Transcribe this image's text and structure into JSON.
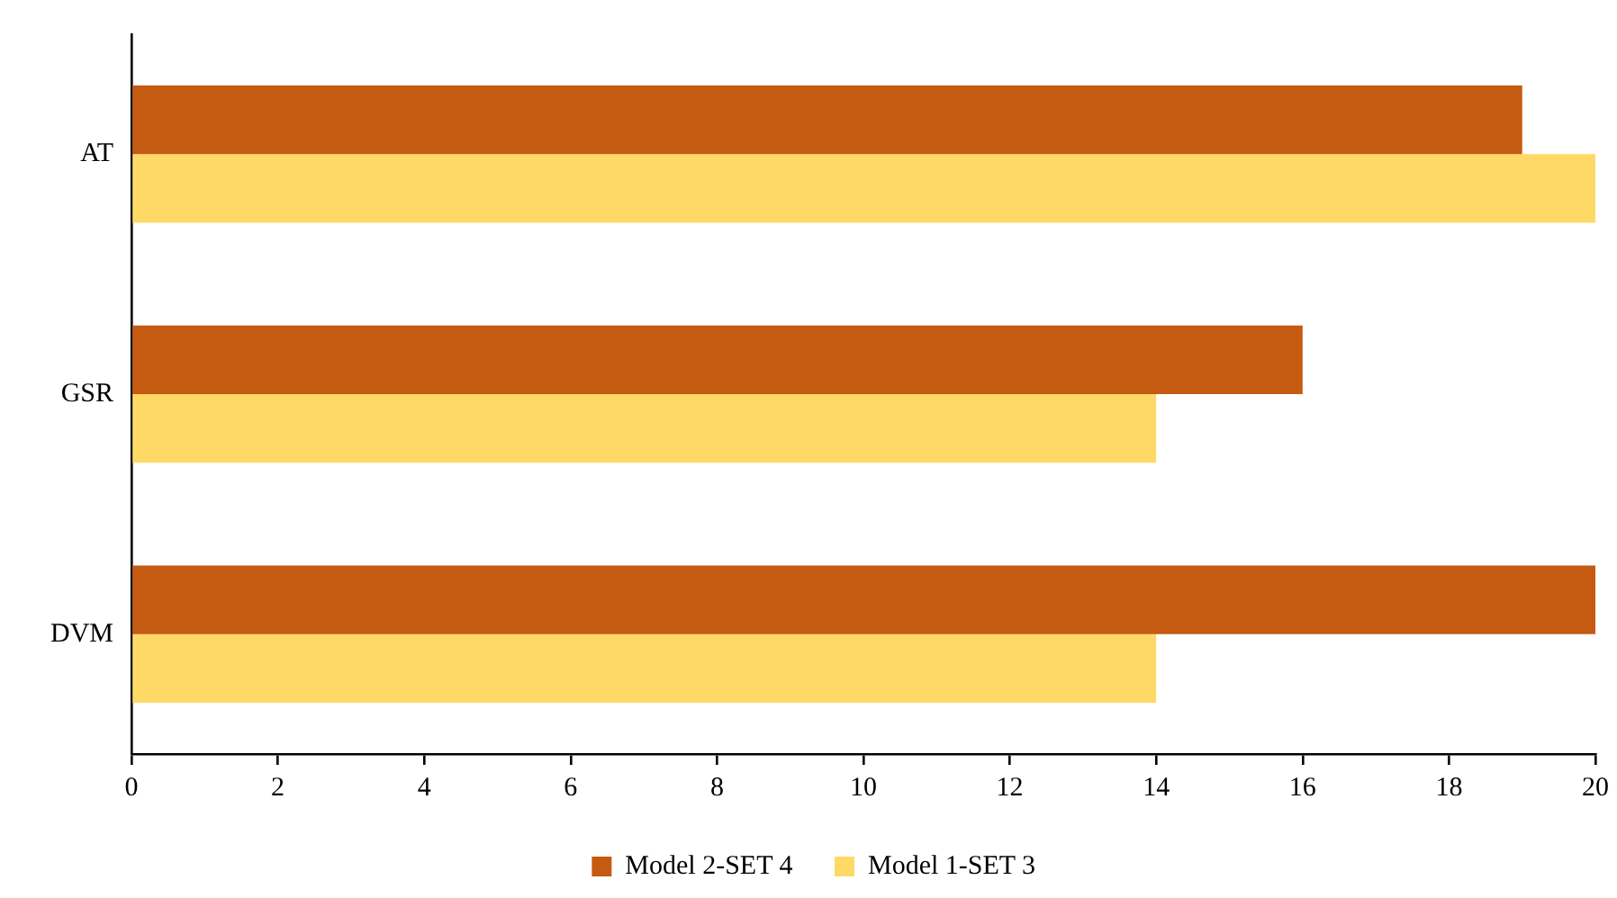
{
  "chart_data": {
    "type": "bar",
    "orientation": "horizontal",
    "categories": [
      "AT",
      "GSR",
      "DVM"
    ],
    "series": [
      {
        "name": "Model 2-SET 4",
        "color": "#c55a11",
        "values": [
          19,
          16,
          20
        ]
      },
      {
        "name": "Model 1-SET 3",
        "color": "#ffd966",
        "values": [
          20,
          14,
          14
        ]
      }
    ],
    "xlim": [
      0,
      20
    ],
    "xticks": [
      0,
      2,
      4,
      6,
      8,
      10,
      12,
      14,
      16,
      18,
      20
    ],
    "grid": false,
    "legend": "bottom"
  }
}
